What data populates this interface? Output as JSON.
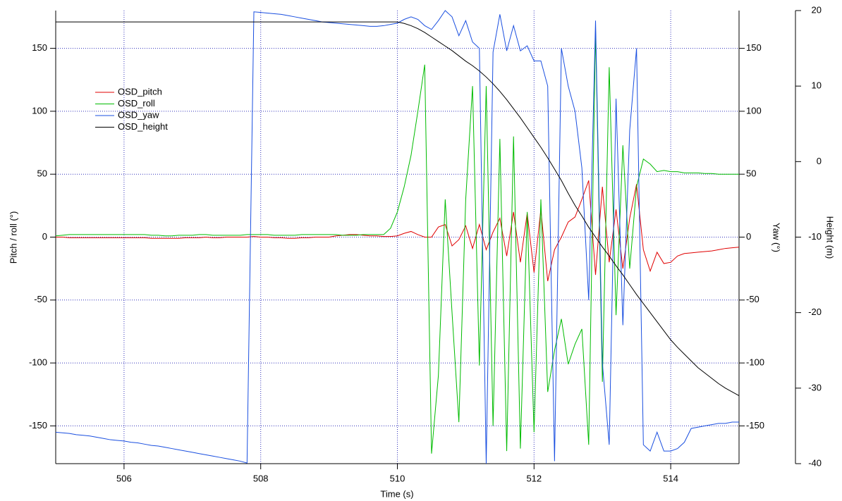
{
  "chart_data": {
    "type": "line",
    "x_label": "Time (s)",
    "y_label": "Pitch / roll (°)",
    "y2_label": "Yaw (°)",
    "y3_label": "Height (m)",
    "xlim": [
      505,
      515
    ],
    "xticks": [
      506,
      508,
      510,
      512,
      514
    ],
    "ylim": [
      -180,
      180
    ],
    "yticks": [
      -150,
      -100,
      -50,
      0,
      50,
      100,
      150
    ],
    "y2lim": [
      -180,
      180
    ],
    "y2ticks": [
      -150,
      -100,
      -50,
      0,
      50,
      100,
      150
    ],
    "y3lim": [
      -40,
      20
    ],
    "y3ticks": [
      -40,
      -30,
      -20,
      -10,
      0,
      10,
      20
    ],
    "grid": true,
    "legend": "upper left",
    "x": [
      505.0,
      505.1,
      505.2,
      505.3,
      505.4,
      505.5,
      505.6,
      505.7,
      505.8,
      505.9,
      506.0,
      506.1,
      506.2,
      506.3,
      506.4,
      506.5,
      506.6,
      506.7,
      506.8,
      506.9,
      507.0,
      507.1,
      507.2,
      507.3,
      507.4,
      507.5,
      507.6,
      507.7,
      507.8,
      507.9,
      508.0,
      508.1,
      508.2,
      508.3,
      508.4,
      508.5,
      508.6,
      508.7,
      508.8,
      508.9,
      509.0,
      509.1,
      509.2,
      509.3,
      509.4,
      509.5,
      509.6,
      509.7,
      509.8,
      509.9,
      510.0,
      510.1,
      510.2,
      510.3,
      510.4,
      510.5,
      510.6,
      510.7,
      510.8,
      510.9,
      511.0,
      511.1,
      511.2,
      511.3,
      511.4,
      511.5,
      511.6,
      511.7,
      511.8,
      511.9,
      512.0,
      512.1,
      512.2,
      512.3,
      512.4,
      512.5,
      512.6,
      512.7,
      512.8,
      512.9,
      513.0,
      513.1,
      513.2,
      513.3,
      513.4,
      513.5,
      513.6,
      513.7,
      513.8,
      513.9,
      514.0,
      514.1,
      514.2,
      514.3,
      514.4,
      514.5,
      514.6,
      514.7,
      514.8,
      514.9,
      515.0
    ],
    "series": [
      {
        "name": "OSD_pitch",
        "color": "#e00000",
        "axis": "y",
        "values": [
          0,
          0,
          -0.5,
          -0.5,
          -0.5,
          -0.5,
          -0.5,
          -0.5,
          -0.5,
          -0.5,
          -0.5,
          -0.5,
          -0.5,
          -0.5,
          -1,
          -1,
          -1,
          -1,
          -1,
          -0.5,
          -0.5,
          -0.5,
          0,
          -0.5,
          -0.5,
          0,
          0,
          0,
          0,
          0.5,
          0,
          0,
          -0.5,
          -0.5,
          -1,
          -1,
          -0.5,
          -0.5,
          0,
          0,
          0,
          1,
          1.5,
          2,
          2,
          1.5,
          1,
          1,
          0.5,
          0.5,
          1,
          3,
          4.5,
          2,
          0,
          0,
          8,
          10,
          -7,
          -2,
          9,
          -9,
          10,
          -10,
          4,
          15,
          -15,
          20,
          -20,
          19,
          -28,
          22,
          -35,
          -10,
          0,
          12,
          16,
          30,
          45,
          -30,
          40,
          -20,
          22,
          -25,
          15,
          42,
          -10,
          -27,
          -12,
          -21,
          -20,
          -15,
          -13,
          -12.5,
          -12,
          -11.5,
          -11,
          -10,
          -9,
          -8.5,
          -8
        ]
      },
      {
        "name": "OSD_roll",
        "color": "#00bb00",
        "axis": "y",
        "values": [
          1,
          1.5,
          2,
          2,
          2,
          2,
          2,
          2,
          2,
          2,
          2,
          2,
          2,
          2,
          1.5,
          1.5,
          1,
          1,
          1.5,
          1.5,
          1.5,
          2,
          2,
          1.5,
          1.5,
          1.5,
          1.5,
          1.5,
          2,
          2,
          2,
          2,
          1.5,
          1.5,
          1.5,
          1.5,
          2,
          2,
          2,
          2,
          2,
          2,
          1.5,
          1.5,
          1.5,
          2,
          2,
          2,
          2,
          7,
          20,
          40,
          65,
          100,
          137,
          -172,
          -110,
          30,
          -60,
          -147,
          30,
          120,
          -102,
          120,
          -150,
          78,
          -170,
          80,
          -168,
          20,
          -155,
          30,
          -123,
          -90,
          -65,
          -101,
          -85,
          -73,
          -165,
          165,
          -115,
          135,
          -62,
          73,
          -25,
          40,
          62,
          58,
          52,
          53,
          52,
          52,
          51,
          51,
          51,
          50.5,
          50.5,
          50,
          50,
          50,
          50
        ]
      },
      {
        "name": "OSD_yaw",
        "color": "#1a4fe0",
        "axis": "y2",
        "values": [
          -155,
          -155.5,
          -156,
          -157,
          -157.5,
          -158,
          -159,
          -160,
          -161,
          -161.5,
          -162,
          -163,
          -163.5,
          -164.5,
          -165.5,
          -166,
          -167,
          -168,
          -169,
          -170,
          -171,
          -172,
          -173,
          -174,
          -175,
          -176,
          -177,
          -178,
          -179.5,
          179,
          178.5,
          178,
          177.5,
          177,
          176,
          175,
          174,
          173,
          172,
          171,
          170.5,
          170,
          169.5,
          169,
          168.5,
          168,
          167.5,
          167.5,
          168,
          169,
          170,
          173,
          175,
          173,
          168,
          165,
          172,
          180,
          175,
          160,
          172,
          155,
          150,
          -180,
          147,
          177,
          148,
          168,
          148,
          152,
          140,
          140,
          120,
          -178,
          150,
          120,
          100,
          55,
          -50,
          172,
          -100,
          -165,
          110,
          -70,
          85,
          150,
          -165,
          -170,
          -155,
          -170,
          -170,
          -168,
          -163,
          -152,
          -151,
          -150,
          -149,
          -148,
          -148,
          -147,
          -147
        ]
      },
      {
        "name": "OSD_height",
        "color": "#000000",
        "axis": "y3",
        "values": [
          18.5,
          18.5,
          18.5,
          18.5,
          18.5,
          18.5,
          18.5,
          18.5,
          18.5,
          18.5,
          18.5,
          18.5,
          18.5,
          18.5,
          18.5,
          18.5,
          18.5,
          18.5,
          18.5,
          18.5,
          18.5,
          18.5,
          18.5,
          18.5,
          18.5,
          18.5,
          18.5,
          18.5,
          18.5,
          18.5,
          18.5,
          18.5,
          18.5,
          18.5,
          18.5,
          18.5,
          18.5,
          18.5,
          18.5,
          18.5,
          18.5,
          18.5,
          18.5,
          18.5,
          18.5,
          18.5,
          18.5,
          18.5,
          18.5,
          18.5,
          18.5,
          18.3,
          18,
          17.6,
          17.1,
          16.5,
          15.9,
          15.3,
          14.7,
          14,
          13.3,
          12.7,
          12,
          11.2,
          10.3,
          9.3,
          8.2,
          7,
          5.8,
          4.5,
          3.2,
          1.9,
          0.5,
          -1,
          -2.5,
          -4.2,
          -5.8,
          -7.2,
          -8.7,
          -10,
          -11.3,
          -12.5,
          -13.8,
          -15,
          -16.3,
          -17.6,
          -18.8,
          -20,
          -21.2,
          -22.4,
          -23.6,
          -24.6,
          -25.5,
          -26.4,
          -27.3,
          -28,
          -28.7,
          -29.4,
          -30,
          -30.5,
          -31
        ]
      }
    ]
  }
}
